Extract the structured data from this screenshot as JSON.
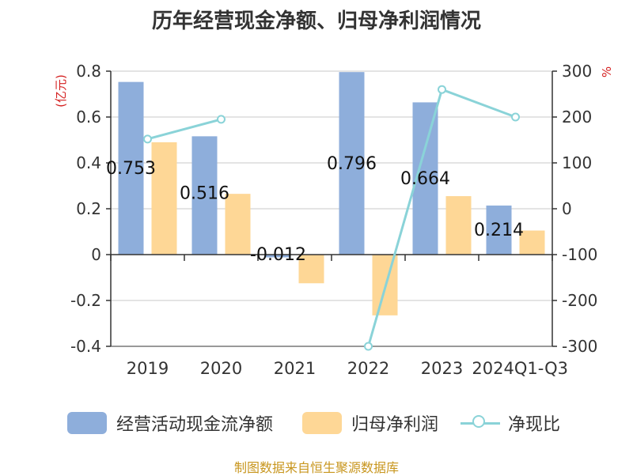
{
  "title": "历年经营现金净额、归母净利润情况",
  "source": "制图数据来自恒生聚源数据库",
  "colors": {
    "ocf": "#8eaedb",
    "profit": "#fed796",
    "ratio": "#8ad3d8",
    "unit": "#d42020",
    "axis": "#333333",
    "grid": "#c9c9c9"
  },
  "chart_data": {
    "type": "bar",
    "categories": [
      "2019",
      "2020",
      "2021",
      "2022",
      "2023",
      "2024Q1-Q3"
    ],
    "series": [
      {
        "name": "经营活动现金流净额",
        "type": "bar",
        "axis": "left",
        "values": [
          0.753,
          0.516,
          -0.012,
          0.796,
          0.664,
          0.214
        ],
        "labels": [
          "0.753",
          "0.516",
          "-0.012",
          "0.796",
          "0.664",
          "0.214"
        ]
      },
      {
        "name": "归母净利润",
        "type": "bar",
        "axis": "left",
        "values": [
          0.49,
          0.265,
          -0.125,
          -0.265,
          0.255,
          0.105
        ]
      },
      {
        "name": "净现比",
        "type": "line",
        "axis": "right",
        "values": [
          152,
          195,
          null,
          -300,
          260,
          200
        ]
      }
    ],
    "y_left": {
      "unit": "(亿元)",
      "ylim": [
        -0.4,
        0.8
      ],
      "ticks": [
        0.8,
        0.6,
        0.4,
        0.2,
        0,
        -0.2,
        -0.4
      ],
      "tick_labels": [
        "0.8",
        "0.6",
        "0.4",
        "0.2",
        "0",
        "-0.2",
        "-0.4"
      ]
    },
    "y_right": {
      "unit": "%",
      "ylim": [
        -300,
        300
      ],
      "ticks": [
        300,
        200,
        100,
        0,
        -100,
        -200,
        -300
      ],
      "tick_labels": [
        "300",
        "200",
        "100",
        "0",
        "-100",
        "-200",
        "-300"
      ]
    },
    "grid": true,
    "legend": "bottom"
  }
}
